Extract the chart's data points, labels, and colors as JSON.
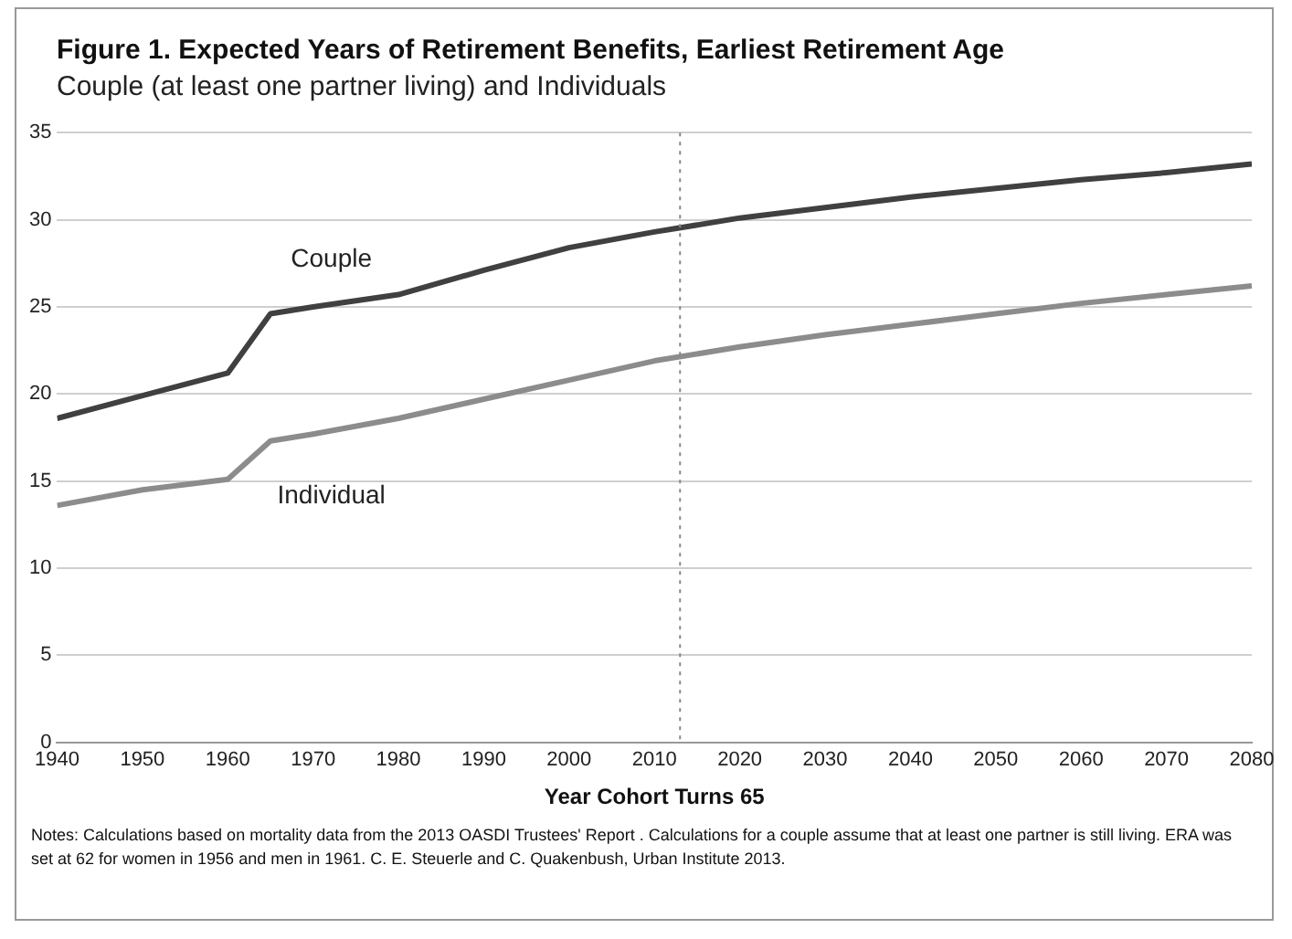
{
  "chart_data": {
    "type": "line",
    "title": "Figure 1. Expected Years of Retirement Benefits, Earliest Retirement Age",
    "subtitle": "Couple (at least one partner living) and Individuals",
    "xlabel": "Year Cohort Turns 65",
    "x": [
      1940,
      1950,
      1960,
      1965,
      1970,
      1980,
      1990,
      2000,
      2010,
      2020,
      2030,
      2040,
      2050,
      2060,
      2070,
      2080
    ],
    "series": [
      {
        "name": "Couple",
        "color": "#404040",
        "values": [
          18.6,
          19.9,
          21.2,
          24.6,
          25.0,
          25.7,
          27.1,
          28.4,
          29.3,
          30.1,
          30.7,
          31.3,
          31.8,
          32.3,
          32.7,
          33.2
        ]
      },
      {
        "name": "Individual",
        "color": "#8c8c8c",
        "values": [
          13.6,
          14.5,
          15.1,
          17.3,
          17.7,
          18.6,
          19.7,
          20.8,
          21.9,
          22.7,
          23.4,
          24.0,
          24.6,
          25.2,
          25.7,
          26.2
        ]
      }
    ],
    "xlim": [
      1940,
      2080
    ],
    "xticks": [
      1940,
      1950,
      1960,
      1970,
      1980,
      1990,
      2000,
      2010,
      2020,
      2030,
      2040,
      2050,
      2060,
      2070,
      2080
    ],
    "ylim": [
      0,
      35
    ],
    "yticks": [
      0,
      5,
      10,
      15,
      20,
      25,
      30,
      35
    ],
    "ref_lines": [
      {
        "axis": "x",
        "value": 2013,
        "color": "#888888",
        "line_style": "dotted"
      }
    ],
    "grid": "y",
    "legend": false,
    "marker": "none",
    "line_style": "solid",
    "annotations": [
      "Notes: Calculations based on mortality data from the 2013 OASDI Trustees' Report . Calculations for a couple assume that at least one partner is still living. ERA was set at 62 for women in 1956 and men in 1961. C. E. Steuerle and C. Quakenbush,  Urban Institute 2013."
    ]
  }
}
